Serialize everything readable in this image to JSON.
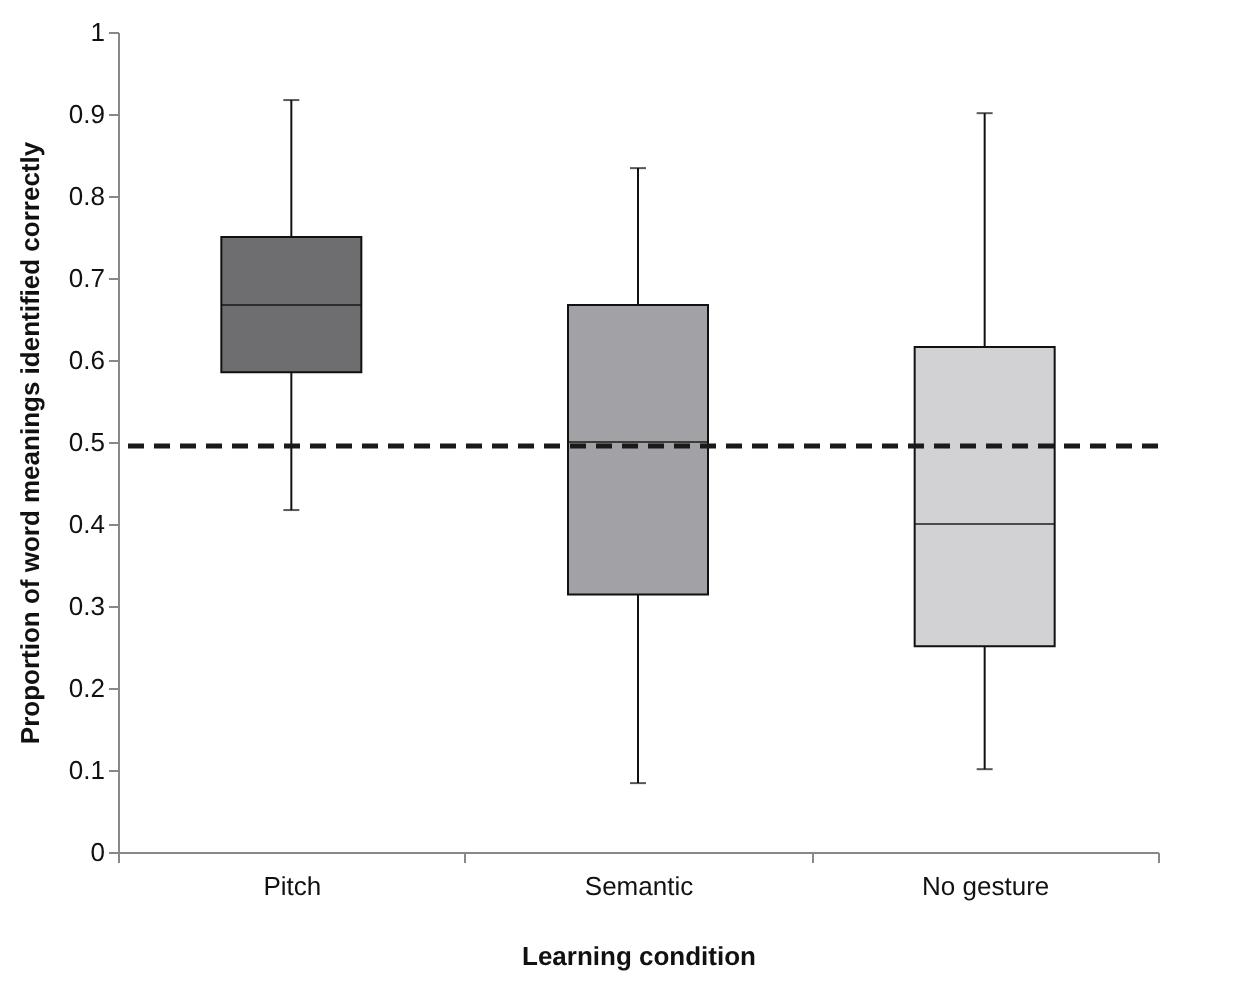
{
  "chart_data": {
    "type": "box",
    "xlabel": "Learning condition",
    "ylabel": "Proportion of word meanings identified correctly",
    "categories": [
      "Pitch",
      "Semantic",
      "No gesture"
    ],
    "colors": [
      "#6e6e70",
      "#a2a2a6",
      "#d2d2d4"
    ],
    "boxes": [
      {
        "low": 0.417,
        "q1": 0.585,
        "median": 0.667,
        "q3": 0.75,
        "high": 0.917
      },
      {
        "low": 0.084,
        "q1": 0.314,
        "median": 0.5,
        "q3": 0.667,
        "high": 0.834
      },
      {
        "low": 0.101,
        "q1": 0.251,
        "median": 0.4,
        "q3": 0.616,
        "high": 0.901
      }
    ],
    "ylim": [
      0,
      1
    ],
    "yticks": [
      0,
      0.1,
      0.2,
      0.3,
      0.4,
      0.5,
      0.6,
      0.7,
      0.8,
      0.9,
      1
    ],
    "ref_lines": [
      {
        "axis": "y",
        "value": 0.495,
        "label": null,
        "line_style": "dashed",
        "color": "#1a1a1a"
      }
    ],
    "grid": false,
    "legend": false
  }
}
